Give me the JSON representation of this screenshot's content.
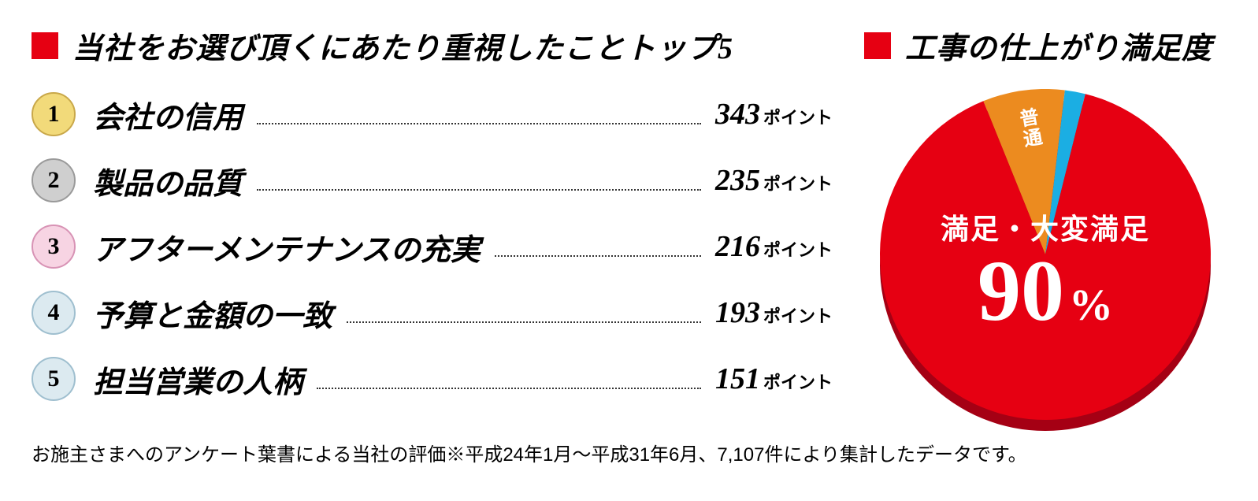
{
  "left": {
    "title": "当社をお選び頂くにあたり重視したことトップ5",
    "marker_color": "#e60012",
    "unit_label": "ポイント",
    "items": [
      {
        "rank": "1",
        "label": "会社の信用",
        "value": "343",
        "badge_bg": "#f2da7a",
        "badge_border": "#c9a84a"
      },
      {
        "rank": "2",
        "label": "製品の品質",
        "value": "235",
        "badge_bg": "#cfcfcf",
        "badge_border": "#9a9a9a"
      },
      {
        "rank": "3",
        "label": "アフターメンテナンスの充実",
        "value": "216",
        "badge_bg": "#f7d4e3",
        "badge_border": "#d893b5"
      },
      {
        "rank": "4",
        "label": "予算と金額の一致",
        "value": "193",
        "badge_bg": "#dceaf0",
        "badge_border": "#9fbfcf"
      },
      {
        "rank": "5",
        "label": "担当営業の人柄",
        "value": "151",
        "badge_bg": "#dceaf0",
        "badge_border": "#9fbfcf"
      }
    ]
  },
  "right": {
    "title": "工事の仕上がり満足度",
    "marker_color": "#e60012",
    "pie": {
      "type": "pie",
      "shadow_color": "#a50014",
      "slices": [
        {
          "label": "満足・大変満足",
          "value": 90,
          "color": "#e60012"
        },
        {
          "label": "普通",
          "value": 8,
          "color": "#ec8b1f"
        },
        {
          "label": "",
          "value": 2,
          "color": "#1baee3"
        }
      ],
      "center_label": "満足・大変満足",
      "center_percent": "90",
      "center_percent_unit": "%",
      "slice2_label": "普通"
    }
  },
  "footnote": "お施主さまへのアンケート葉書による当社の評価※平成24年1月～平成31年6月、7,107件により集計したデータです。"
}
